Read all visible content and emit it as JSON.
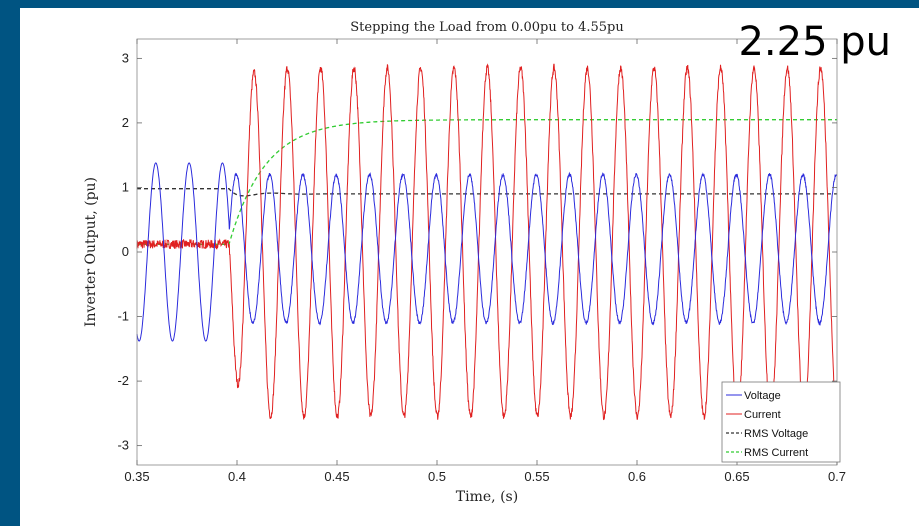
{
  "overlay": {
    "label": "2.25 pu"
  },
  "chart_data": {
    "type": "line",
    "title": "Stepping the Load from 0.00pu to 4.55pu",
    "xlabel": "Time, (s)",
    "ylabel": "Inverter Output, (pu)",
    "xlim": [
      0.35,
      0.7
    ],
    "ylim": [
      -3.3,
      3.3
    ],
    "xticks": [
      0.35,
      0.4,
      0.45,
      0.5,
      0.55,
      0.6,
      0.65,
      0.7
    ],
    "xtick_labels": [
      "0.35",
      "0.4",
      "0.45",
      "0.5",
      "0.55",
      "0.6",
      "0.65",
      "0.7"
    ],
    "yticks": [
      -3,
      -2,
      -1,
      0,
      1,
      2,
      3
    ],
    "ytick_labels": [
      "-3",
      "-2",
      "-1",
      "0",
      "1",
      "2",
      "3"
    ],
    "grid": false,
    "legend_position": "bottom-right",
    "step_time": 0.396,
    "frequency_hz": 60,
    "series": [
      {
        "name": "Voltage",
        "color": "#2b2bdc",
        "style": "solid",
        "amplitude_before": 1.38,
        "amplitude_after": 1.15,
        "offset_after": 0.05
      },
      {
        "name": "Current",
        "color": "#e02020",
        "style": "solid",
        "value_before": 0.12,
        "peak_after": 2.85,
        "trough_after": -2.55
      },
      {
        "name": "RMS Voltage",
        "color": "#333333",
        "style": "dashed",
        "value_before": 0.98,
        "value_after": 0.9
      },
      {
        "name": "RMS Current",
        "color": "#33cc33",
        "style": "dashed",
        "value_before": 0.12,
        "value_after": 2.05
      }
    ]
  }
}
